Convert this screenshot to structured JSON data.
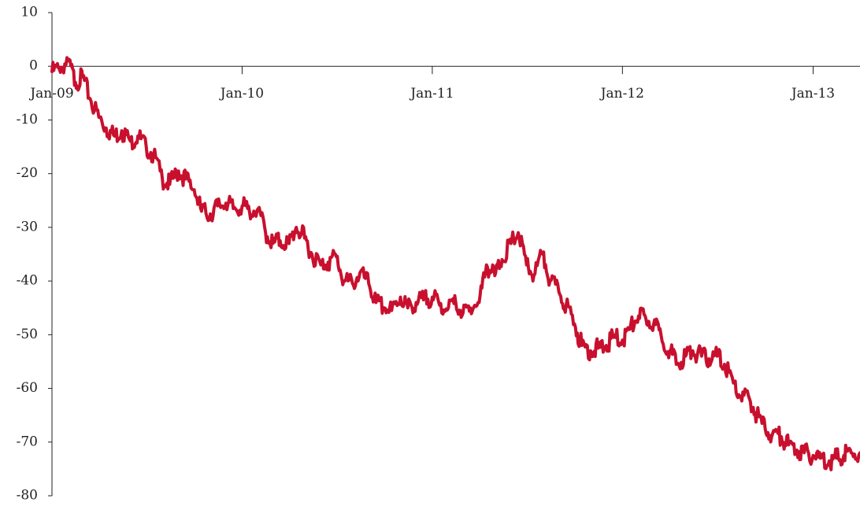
{
  "chart_data": {
    "type": "line",
    "title": "",
    "xlabel": "",
    "ylabel": "",
    "xlim": [
      "2009-01-01",
      "2013-04-01"
    ],
    "ylim": [
      -80,
      10
    ],
    "y_ticks": [
      10,
      0,
      -10,
      -20,
      -30,
      -40,
      -50,
      -60,
      -70,
      -80
    ],
    "y_tick_labels": [
      "10",
      "0",
      "-10",
      "-20",
      "-30",
      "-40",
      "-50",
      "-60",
      "-70",
      "-80"
    ],
    "x_ticks": [
      "2009-01-01",
      "2010-01-01",
      "2011-01-01",
      "2012-01-01",
      "2013-01-01"
    ],
    "x_tick_labels": [
      "Jan-09",
      "Jan-10",
      "Jan-11",
      "Jan-12",
      "Jan-13"
    ],
    "grid": false,
    "legend": "none",
    "colors": {
      "series": "#c8102e",
      "axis": "#222222"
    },
    "series": [
      {
        "x": [
          "2009-01-01",
          "2009-01-15",
          "2009-02-01",
          "2009-02-15",
          "2009-03-01",
          "2009-03-15",
          "2009-04-01",
          "2009-04-15",
          "2009-05-01",
          "2009-05-15",
          "2009-06-01",
          "2009-06-15",
          "2009-07-01",
          "2009-07-15",
          "2009-08-01",
          "2009-08-15",
          "2009-09-01",
          "2009-09-15",
          "2009-10-01",
          "2009-10-15",
          "2009-11-01",
          "2009-11-15",
          "2009-12-01",
          "2009-12-15",
          "2010-01-01",
          "2010-01-15",
          "2010-02-01",
          "2010-02-15",
          "2010-03-01",
          "2010-03-15",
          "2010-04-01",
          "2010-04-15",
          "2010-05-01",
          "2010-05-15",
          "2010-06-01",
          "2010-06-15",
          "2010-07-01",
          "2010-07-15",
          "2010-08-01",
          "2010-08-15",
          "2010-09-01",
          "2010-09-15",
          "2010-10-01",
          "2010-10-15",
          "2010-11-01",
          "2010-11-15",
          "2010-12-01",
          "2010-12-15",
          "2011-01-01",
          "2011-01-15",
          "2011-02-01",
          "2011-02-15",
          "2011-03-01",
          "2011-03-15",
          "2011-04-01",
          "2011-04-15",
          "2011-05-01",
          "2011-05-15",
          "2011-06-01",
          "2011-06-15",
          "2011-07-01",
          "2011-07-15",
          "2011-08-01",
          "2011-08-15",
          "2011-09-01",
          "2011-09-15",
          "2011-10-01",
          "2011-10-15",
          "2011-11-01",
          "2011-11-15",
          "2011-12-01",
          "2011-12-15",
          "2012-01-01",
          "2012-01-15",
          "2012-02-01",
          "2012-02-15",
          "2012-03-01",
          "2012-03-15",
          "2012-04-01",
          "2012-04-15",
          "2012-05-01",
          "2012-05-15",
          "2012-06-01",
          "2012-06-15",
          "2012-07-01",
          "2012-07-15",
          "2012-08-01",
          "2012-08-15",
          "2012-09-01",
          "2012-09-15",
          "2012-10-01",
          "2012-10-15",
          "2012-11-01",
          "2012-11-15",
          "2012-12-01",
          "2012-12-15",
          "2013-01-01",
          "2013-01-15",
          "2013-02-01",
          "2013-02-15",
          "2013-03-01",
          "2013-03-15",
          "2013-04-01"
        ],
        "y": [
          -1.0,
          -0.5,
          1.0,
          -3.0,
          -2.0,
          -6.0,
          -9.5,
          -11.5,
          -13.0,
          -12.0,
          -14.0,
          -13.0,
          -15.0,
          -16.5,
          -21.0,
          -22.0,
          -19.5,
          -21.0,
          -23.0,
          -27.0,
          -27.5,
          -26.0,
          -25.5,
          -26.5,
          -26.0,
          -27.0,
          -26.5,
          -31.0,
          -33.0,
          -32.5,
          -33.0,
          -30.0,
          -32.0,
          -35.0,
          -37.0,
          -36.5,
          -35.5,
          -40.0,
          -40.5,
          -38.5,
          -40.5,
          -44.0,
          -45.0,
          -45.5,
          -43.0,
          -45.0,
          -44.0,
          -43.5,
          -43.0,
          -44.5,
          -45.0,
          -44.0,
          -46.0,
          -45.0,
          -44.0,
          -37.0,
          -39.0,
          -36.0,
          -33.0,
          -31.0,
          -37.0,
          -39.0,
          -35.0,
          -40.0,
          -42.0,
          -44.5,
          -48.0,
          -52.0,
          -53.0,
          -52.5,
          -52.0,
          -50.5,
          -51.0,
          -49.0,
          -46.5,
          -47.0,
          -48.0,
          -50.0,
          -53.0,
          -55.5,
          -54.0,
          -53.0,
          -54.0,
          -54.5,
          -54.0,
          -55.5,
          -59.0,
          -61.5,
          -62.0,
          -65.0,
          -67.5,
          -68.5,
          -69.0,
          -70.5,
          -71.5,
          -72.0,
          -72.5,
          -73.0,
          -73.5,
          -73.0,
          -72.5,
          -72.0,
          -72.0
        ]
      }
    ]
  }
}
